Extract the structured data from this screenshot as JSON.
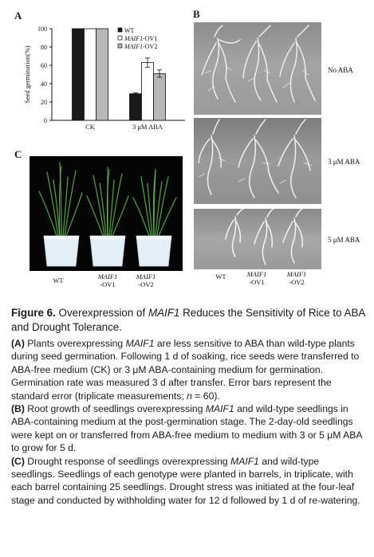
{
  "panels": {
    "a_letter": "A",
    "b_letter": "B",
    "c_letter": "C"
  },
  "chart_data": {
    "type": "bar",
    "ylabel": "Seed germination(%)",
    "ylim": [
      0,
      100
    ],
    "yticks": [
      "0",
      "20",
      "40",
      "60",
      "80",
      "100"
    ],
    "categories": [
      "CK",
      "3 μM ABA"
    ],
    "legend": [
      {
        "prefix": "",
        "name": "WT",
        "suffix": "",
        "color": "#1a1a1a"
      },
      {
        "prefix": "",
        "name": "MAIF1",
        "suffix": "-OV1",
        "color": "#ffffff"
      },
      {
        "prefix": "",
        "name": "MAIF1",
        "suffix": "-OV2",
        "color": "#b8b8b8"
      }
    ],
    "series": [
      {
        "name": "WT",
        "values": [
          100,
          29
        ],
        "errors": [
          0,
          1
        ]
      },
      {
        "name": "MAIF1-OV1",
        "values": [
          100,
          63
        ],
        "errors": [
          0,
          5
        ]
      },
      {
        "name": "MAIF1-OV2",
        "values": [
          100,
          51
        ],
        "errors": [
          0,
          4
        ]
      }
    ]
  },
  "panel_b": {
    "row_labels": [
      "No ABA",
      "3 μM ABA",
      "5 μM ABA"
    ],
    "genotypes": [
      {
        "line1": "WT",
        "line2": ""
      },
      {
        "line1": "MAIF1",
        "line2": "-OV1"
      },
      {
        "line1": "MAIF1",
        "line2": "-OV2"
      }
    ]
  },
  "panel_c": {
    "genotypes": [
      {
        "line1": "WT",
        "line2": ""
      },
      {
        "line1": "MAIF1",
        "line2": "-OV1"
      },
      {
        "line1": "MAIF1",
        "line2": "-OV2"
      }
    ]
  },
  "caption": {
    "fig_label": "Figure 6.",
    "title_a": "Overexpression of ",
    "title_gene": "MAIF1",
    "title_b": " Reduces the Sensitivity of Rice to ABA and Drought Tolerance.",
    "a_label": "(A)",
    "a_1": " Plants overexpressing ",
    "a_gene": "MAIF1",
    "a_2": " are less sensitive to ABA than wild-type plants during seed germination. Following 1 d of soaking, rice seeds were transferred to ABA-free medium (CK) or 3 μM ABA-containing medium for germination. Germination rate was measured 3 d after transfer. Error bars represent the standard error (triplicate measurements; ",
    "a_n": "n",
    "a_3": " = 60).",
    "b_label": "(B)",
    "b_1": " Root growth of seedlings overexpressing ",
    "b_gene": "MAIF1",
    "b_2": " and wild-type seedlings in ABA-containing medium at the post-germination stage. The 2-day-old seedlings were kept on or transferred from ABA-free medium to medium with 3 or 5 μM ABA to grow for 5 d.",
    "c_label": "(C)",
    "c_1": " Drought response of seedlings overexpressing ",
    "c_gene": "MAIF1",
    "c_2": " and wild-type seedlings. Seedlings of each genotype were planted in barrels, in triplicate, with each barrel containing 25 seedlings. Drought stress was initiated at the four-leaf stage and conducted by withholding water for 12 d followed by 1 d of re-watering."
  }
}
